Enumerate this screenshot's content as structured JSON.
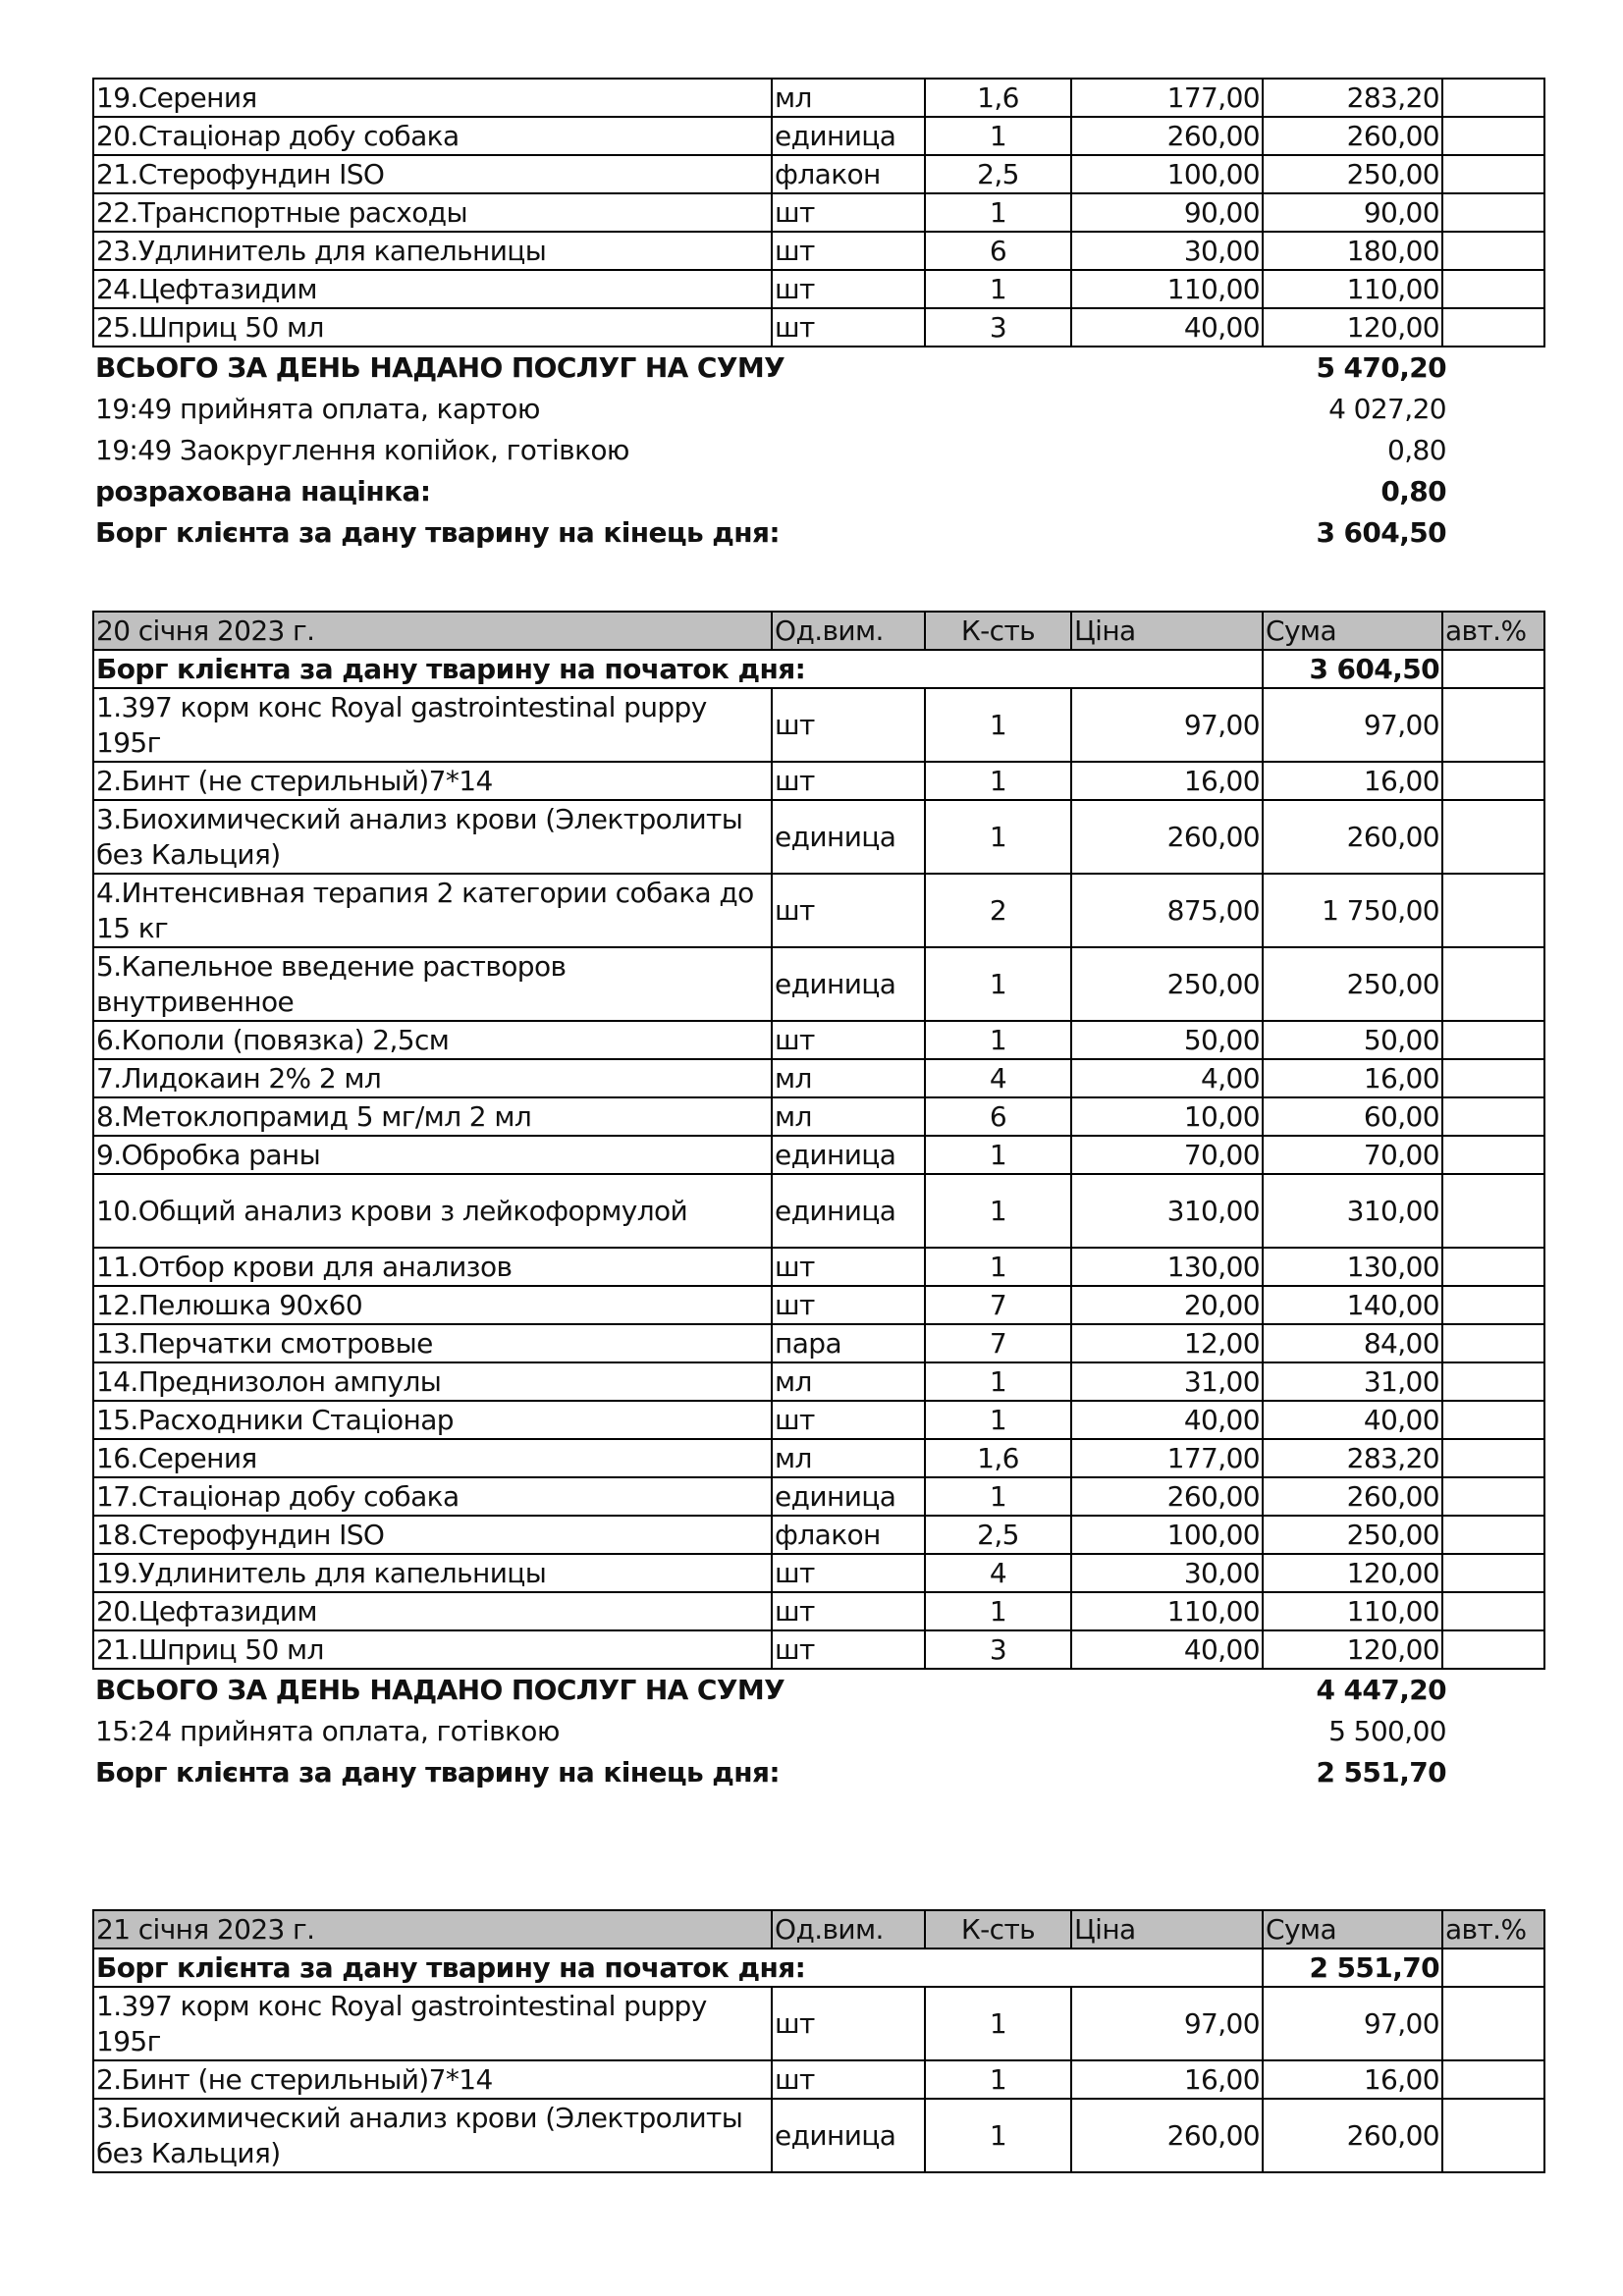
{
  "columns": {
    "date_unit": "Од.вим.",
    "qty": "К-сть",
    "price": "Ціна",
    "sum": "Сума",
    "auto": "авт.%"
  },
  "sections": [
    {
      "header": null,
      "opening": null,
      "items": [
        {
          "name": "19.Серения",
          "unit": "мл",
          "qty": "1,6",
          "price": "177,00",
          "sum": "283,20"
        },
        {
          "name": "20.Стаціонар добу собака",
          "unit": "единица",
          "qty": "1",
          "price": "260,00",
          "sum": "260,00"
        },
        {
          "name": "21.Стерофундин ISO",
          "unit": "флакон",
          "qty": "2,5",
          "price": "100,00",
          "sum": "250,00"
        },
        {
          "name": "22.Транспортные расходы",
          "unit": "шт",
          "qty": "1",
          "price": "90,00",
          "sum": "90,00"
        },
        {
          "name": "23.Удлинитель для капельницы",
          "unit": "шт",
          "qty": "6",
          "price": "30,00",
          "sum": "180,00"
        },
        {
          "name": "24.Цефтазидим",
          "unit": "шт",
          "qty": "1",
          "price": "110,00",
          "sum": "110,00"
        },
        {
          "name": "25.Шприц 50 мл",
          "unit": "шт",
          "qty": "3",
          "price": "40,00",
          "sum": "120,00"
        }
      ],
      "summary": [
        {
          "label": "ВСЬОГО ЗА ДЕНЬ НАДАНО ПОСЛУГ НА СУМУ",
          "value": "5 470,20",
          "bold": true
        },
        {
          "label": "19:49 прийнята оплата, картою",
          "value": "4 027,20",
          "bold": false
        },
        {
          "label": "19:49 Заокруглення копійок, готівкою",
          "value": "0,80",
          "bold": false
        },
        {
          "label": "розрахована націнка:",
          "value": "0,80",
          "bold": true
        },
        {
          "label": "Борг клієнта за дану тварину на кінець дня:",
          "value": "3 604,50",
          "bold": true
        }
      ]
    },
    {
      "header": "20 січня 2023 г.",
      "opening": {
        "label": "Борг клієнта за дану тварину на початок дня:",
        "value": "3 604,50"
      },
      "items": [
        {
          "name": "1.397 корм конс Royal gastrointestinal puppy 195г",
          "unit": "шт",
          "qty": "1",
          "price": "97,00",
          "sum": "97,00",
          "tall": true
        },
        {
          "name": "2.Бинт (не стерильный)7*14",
          "unit": "шт",
          "qty": "1",
          "price": "16,00",
          "sum": "16,00"
        },
        {
          "name": "3.Биохимический анализ крови (Электролиты без Кальция)",
          "unit": "единица",
          "qty": "1",
          "price": "260,00",
          "sum": "260,00",
          "tall": true
        },
        {
          "name": "4.Интенсивная терапия 2 категории собака до 15 кг",
          "unit": "шт",
          "qty": "2",
          "price": "875,00",
          "sum": "1 750,00",
          "tall": true
        },
        {
          "name": "5.Капельное введение растворов внутривенное",
          "unit": "единица",
          "qty": "1",
          "price": "250,00",
          "sum": "250,00",
          "tall": true
        },
        {
          "name": "6.Кополи (повязка) 2,5см",
          "unit": "шт",
          "qty": "1",
          "price": "50,00",
          "sum": "50,00"
        },
        {
          "name": "7.Лидокаин 2% 2 мл",
          "unit": "мл",
          "qty": "4",
          "price": "4,00",
          "sum": "16,00"
        },
        {
          "name": "8.Метоклопрамид 5 мг/мл 2 мл",
          "unit": "мл",
          "qty": "6",
          "price": "10,00",
          "sum": "60,00"
        },
        {
          "name": "9.Обробка раны",
          "unit": "единица",
          "qty": "1",
          "price": "70,00",
          "sum": "70,00"
        },
        {
          "name": "10.Общий анализ крови з лейкоформулой",
          "unit": "единица",
          "qty": "1",
          "price": "310,00",
          "sum": "310,00",
          "tall": true
        },
        {
          "name": "11.Отбор крови для анализов",
          "unit": "шт",
          "qty": "1",
          "price": "130,00",
          "sum": "130,00"
        },
        {
          "name": "12.Пелюшка 90х60",
          "unit": "шт",
          "qty": "7",
          "price": "20,00",
          "sum": "140,00"
        },
        {
          "name": "13.Перчатки смотровые",
          "unit": "пара",
          "qty": "7",
          "price": "12,00",
          "sum": "84,00"
        },
        {
          "name": "14.Преднизолон ампулы",
          "unit": "мл",
          "qty": "1",
          "price": "31,00",
          "sum": "31,00"
        },
        {
          "name": "15.Расходники Стаціонар",
          "unit": "шт",
          "qty": "1",
          "price": "40,00",
          "sum": "40,00"
        },
        {
          "name": "16.Серения",
          "unit": "мл",
          "qty": "1,6",
          "price": "177,00",
          "sum": "283,20"
        },
        {
          "name": "17.Стаціонар добу собака",
          "unit": "единица",
          "qty": "1",
          "price": "260,00",
          "sum": "260,00"
        },
        {
          "name": "18.Стерофундин ISO",
          "unit": "флакон",
          "qty": "2,5",
          "price": "100,00",
          "sum": "250,00"
        },
        {
          "name": "19.Удлинитель для капельницы",
          "unit": "шт",
          "qty": "4",
          "price": "30,00",
          "sum": "120,00"
        },
        {
          "name": "20.Цефтазидим",
          "unit": "шт",
          "qty": "1",
          "price": "110,00",
          "sum": "110,00"
        },
        {
          "name": "21.Шприц 50 мл",
          "unit": "шт",
          "qty": "3",
          "price": "40,00",
          "sum": "120,00"
        }
      ],
      "summary": [
        {
          "label": "ВСЬОГО ЗА ДЕНЬ НАДАНО ПОСЛУГ НА СУМУ",
          "value": "4 447,20",
          "bold": true
        },
        {
          "label": "15:24 прийнята оплата, готівкою",
          "value": "5 500,00",
          "bold": false
        },
        {
          "label": "Борг клієнта за дану тварину на кінець дня:",
          "value": "2 551,70",
          "bold": true
        }
      ]
    },
    {
      "header": "21 січня 2023 г.",
      "opening": {
        "label": "Борг клієнта за дану тварину на початок дня:",
        "value": "2 551,70"
      },
      "items": [
        {
          "name": "1.397 корм конс Royal gastrointestinal puppy 195г",
          "unit": "шт",
          "qty": "1",
          "price": "97,00",
          "sum": "97,00",
          "tall": true
        },
        {
          "name": "2.Бинт (не стерильный)7*14",
          "unit": "шт",
          "qty": "1",
          "price": "16,00",
          "sum": "16,00"
        },
        {
          "name": "3.Биохимический анализ крови (Электролиты без Кальция)",
          "unit": "единица",
          "qty": "1",
          "price": "260,00",
          "sum": "260,00",
          "tall": true
        }
      ],
      "summary": []
    }
  ]
}
